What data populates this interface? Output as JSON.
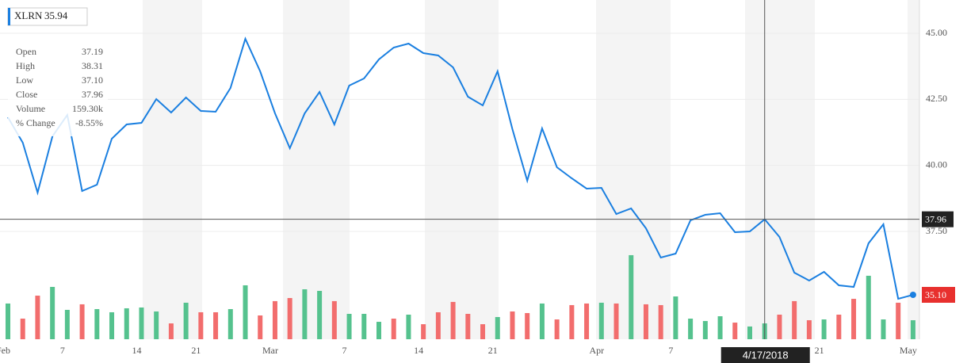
{
  "chart_data": {
    "type": "line",
    "symbol": "XLRN",
    "price": 35.94,
    "categories": [
      "Feb",
      null,
      null,
      null,
      "7",
      null,
      null,
      null,
      null,
      "14",
      null,
      null,
      null,
      "21",
      null,
      null,
      null,
      null,
      "Mar",
      null,
      null,
      null,
      null,
      "7",
      null,
      null,
      null,
      null,
      "14",
      null,
      null,
      null,
      null,
      "21",
      null,
      null,
      null,
      null,
      null,
      null,
      "Apr",
      null,
      null,
      null,
      null,
      "7",
      null,
      null,
      null,
      null,
      "14",
      null,
      null,
      null,
      null,
      "21",
      null,
      null,
      null,
      null,
      null,
      "May"
    ],
    "values": [
      41.82,
      40.86,
      38.97,
      41.1,
      41.91,
      39.03,
      39.27,
      41.01,
      41.55,
      41.61,
      42.51,
      42.0,
      42.57,
      42.06,
      42.03,
      42.93,
      44.79,
      43.56,
      41.97,
      40.65,
      41.97,
      42.78,
      41.55,
      43.02,
      43.29,
      44.01,
      44.46,
      44.61,
      44.25,
      44.16,
      43.71,
      42.6,
      42.27,
      43.56,
      41.37,
      39.42,
      41.4,
      39.93,
      39.51,
      39.12,
      39.15,
      38.16,
      38.37,
      37.62,
      36.51,
      36.66,
      37.92,
      38.13,
      38.19,
      37.47,
      37.5,
      37.96,
      37.29,
      35.94,
      35.64,
      35.97,
      35.46,
      35.4,
      37.05,
      37.77,
      34.95,
      35.1
    ],
    "color": "#1a7fe0",
    "ylim": [
      33.42,
      46.26
    ],
    "yticks": [
      {
        "value": 37.5,
        "label": "37.50"
      },
      {
        "value": 40,
        "label": "40.00"
      },
      {
        "value": 42.5,
        "label": "42.50"
      },
      {
        "value": 45,
        "label": "45.00"
      }
    ],
    "grid": true,
    "volume": {
      "values": [
        359,
        207,
        438,
        526,
        295,
        351,
        303,
        271,
        311,
        319,
        279,
        159,
        367,
        271,
        271,
        303,
        542,
        239,
        383,
        414,
        502,
        486,
        383,
        255,
        255,
        175,
        207,
        247,
        151,
        271,
        375,
        255,
        151,
        223,
        279,
        263,
        359,
        199,
        343,
        359,
        367,
        359,
        845,
        351,
        343,
        430,
        207,
        183,
        231,
        167,
        128,
        159.3,
        247,
        383,
        191,
        199,
        247,
        406,
        638,
        199,
        367,
        191
      ],
      "up": [
        true,
        false,
        false,
        true,
        true,
        false,
        true,
        true,
        true,
        true,
        true,
        false,
        true,
        false,
        false,
        true,
        true,
        false,
        false,
        false,
        true,
        true,
        false,
        true,
        true,
        true,
        false,
        true,
        false,
        false,
        false,
        false,
        false,
        true,
        false,
        false,
        true,
        false,
        false,
        false,
        true,
        false,
        true,
        false,
        false,
        true,
        true,
        true,
        true,
        false,
        true,
        true,
        false,
        false,
        false,
        true,
        false,
        false,
        true,
        true,
        false,
        true
      ],
      "up_color": "#55c28e",
      "down_color": "#f26d6d",
      "vlim": [
        0,
        1000
      ]
    },
    "tooltip": [
      {
        "label": "Open",
        "value": "37.19"
      },
      {
        "label": "High",
        "value": "38.31"
      },
      {
        "label": "Low",
        "value": "37.10"
      },
      {
        "label": "Close",
        "value": "37.96"
      },
      {
        "label": "Volume",
        "value": "159.30k"
      },
      {
        "label": "% Change",
        "value": "-8.55%"
      }
    ],
    "crosshair": {
      "index": 51,
      "value": 37.96,
      "date": "4/17/2018"
    },
    "last": {
      "value": 35.1,
      "label": "35.10"
    }
  }
}
